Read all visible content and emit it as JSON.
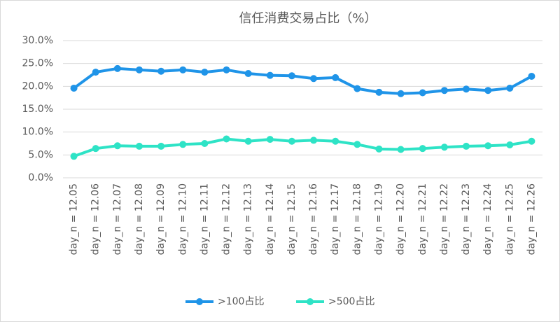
{
  "chart_data": {
    "type": "line",
    "title": "信任消费交易占比（%）",
    "categories": [
      "day_n = 12.05",
      "day_n = 12.06",
      "day_n = 12.07",
      "day_n = 12.08",
      "day_n = 12.09",
      "day_n = 12.10",
      "day_n = 12.11",
      "day_n = 12.12",
      "day_n = 12.13",
      "day_n = 12.14",
      "day_n = 12.15",
      "day_n = 12.16",
      "day_n = 12.17",
      "day_n = 12.18",
      "day_n = 12.19",
      "day_n = 12.20",
      "day_n = 12.21",
      "day_n = 12.22",
      "day_n = 12.23",
      "day_n = 12.24",
      "day_n = 12.25",
      "day_n = 12.26"
    ],
    "series": [
      {
        "name": ">100占比",
        "color": "#1f94e8",
        "values": [
          19.6,
          23.1,
          23.9,
          23.6,
          23.3,
          23.6,
          23.1,
          23.6,
          22.8,
          22.4,
          22.3,
          21.7,
          21.9,
          19.5,
          18.7,
          18.4,
          18.6,
          19.1,
          19.4,
          19.1,
          19.6,
          22.2
        ]
      },
      {
        "name": ">500占比",
        "color": "#2ee3c6",
        "values": [
          4.7,
          6.4,
          7.0,
          6.9,
          6.9,
          7.3,
          7.5,
          8.5,
          8.0,
          8.4,
          8.0,
          8.2,
          8.0,
          7.3,
          6.3,
          6.2,
          6.4,
          6.7,
          6.9,
          7.0,
          7.2,
          8.0
        ]
      }
    ],
    "ylim": [
      0,
      30
    ],
    "yticks": [
      {
        "value": 0,
        "label": "0.0%"
      },
      {
        "value": 5,
        "label": "5.0%"
      },
      {
        "value": 10,
        "label": "10.0%"
      },
      {
        "value": 15,
        "label": "15.0%"
      },
      {
        "value": 20,
        "label": "20.0%"
      },
      {
        "value": 25,
        "label": "25.0%"
      },
      {
        "value": 30,
        "label": "30.0%"
      }
    ],
    "grid": true,
    "legend": "bottom"
  }
}
